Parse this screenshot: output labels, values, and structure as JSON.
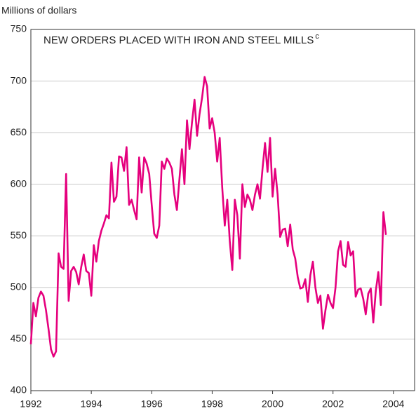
{
  "chart_data": {
    "type": "line",
    "y_axis_label": "Millions of dollars",
    "title": "NEW ORDERS PLACED WITH IRON AND STEEL MILLS",
    "title_superscript": "c",
    "color": "#e5007d",
    "grid": true,
    "xlim": [
      1992,
      2004.7
    ],
    "xticks": [
      1992,
      1994,
      1996,
      1998,
      2000,
      2002,
      2004
    ],
    "ylim": [
      400,
      750
    ],
    "yticks": [
      400,
      450,
      500,
      550,
      600,
      650,
      700,
      750
    ],
    "x": [
      1992.0,
      1992.083,
      1992.167,
      1992.25,
      1992.333,
      1992.417,
      1992.5,
      1992.583,
      1992.667,
      1992.75,
      1992.833,
      1992.917,
      1993.0,
      1993.083,
      1993.167,
      1993.25,
      1993.333,
      1993.417,
      1993.5,
      1993.583,
      1993.667,
      1993.75,
      1993.833,
      1993.917,
      1994.0,
      1994.083,
      1994.167,
      1994.25,
      1994.333,
      1994.417,
      1994.5,
      1994.583,
      1994.667,
      1994.75,
      1994.833,
      1994.917,
      1995.0,
      1995.083,
      1995.167,
      1995.25,
      1995.333,
      1995.417,
      1995.5,
      1995.583,
      1995.667,
      1995.75,
      1995.833,
      1995.917,
      1996.0,
      1996.083,
      1996.167,
      1996.25,
      1996.333,
      1996.417,
      1996.5,
      1996.583,
      1996.667,
      1996.75,
      1996.833,
      1996.917,
      1997.0,
      1997.083,
      1997.167,
      1997.25,
      1997.333,
      1997.417,
      1997.5,
      1997.583,
      1997.667,
      1997.75,
      1997.833,
      1997.917,
      1998.0,
      1998.083,
      1998.167,
      1998.25,
      1998.333,
      1998.417,
      1998.5,
      1998.583,
      1998.667,
      1998.75,
      1998.833,
      1998.917,
      1999.0,
      1999.083,
      1999.167,
      1999.25,
      1999.333,
      1999.417,
      1999.5,
      1999.583,
      1999.667,
      1999.75,
      1999.833,
      1999.917,
      2000.0,
      2000.083,
      2000.167,
      2000.25,
      2000.333,
      2000.417,
      2000.5,
      2000.583,
      2000.667,
      2000.75,
      2000.833,
      2000.917,
      2001.0,
      2001.083,
      2001.167,
      2001.25,
      2001.333,
      2001.417,
      2001.5,
      2001.583,
      2001.667,
      2001.75,
      2001.833,
      2001.917,
      2002.0,
      2002.083,
      2002.167,
      2002.25,
      2002.333,
      2002.417,
      2002.5,
      2002.583,
      2002.667,
      2002.75,
      2002.833,
      2002.917,
      2003.0,
      2003.083,
      2003.167,
      2003.25,
      2003.333,
      2003.417,
      2003.5,
      2003.583,
      2003.667,
      2003.75
    ],
    "values": [
      445,
      485,
      472,
      490,
      496,
      492,
      478,
      460,
      440,
      433,
      438,
      533,
      520,
      518,
      610,
      487,
      516,
      520,
      515,
      503,
      520,
      532,
      516,
      514,
      492,
      541,
      525,
      545,
      555,
      562,
      570,
      567,
      621,
      583,
      588,
      627,
      626,
      613,
      636,
      580,
      585,
      575,
      566,
      626,
      592,
      626,
      620,
      610,
      580,
      552,
      548,
      560,
      622,
      615,
      625,
      621,
      615,
      590,
      575,
      605,
      634,
      600,
      662,
      634,
      660,
      682,
      647,
      668,
      684,
      704,
      695,
      654,
      664,
      650,
      622,
      645,
      597,
      560,
      585,
      545,
      517,
      585,
      570,
      528,
      600,
      578,
      590,
      585,
      575,
      590,
      600,
      586,
      615,
      640,
      612,
      645,
      588,
      615,
      590,
      549,
      556,
      557,
      540,
      561,
      537,
      528,
      510,
      499,
      500,
      508,
      486,
      512,
      525,
      500,
      485,
      492,
      460,
      478,
      493,
      485,
      480,
      500,
      535,
      545,
      522,
      520,
      544,
      531,
      535,
      491,
      498,
      499,
      489,
      474,
      494,
      499,
      466,
      497,
      515,
      483,
      573,
      551
    ]
  }
}
